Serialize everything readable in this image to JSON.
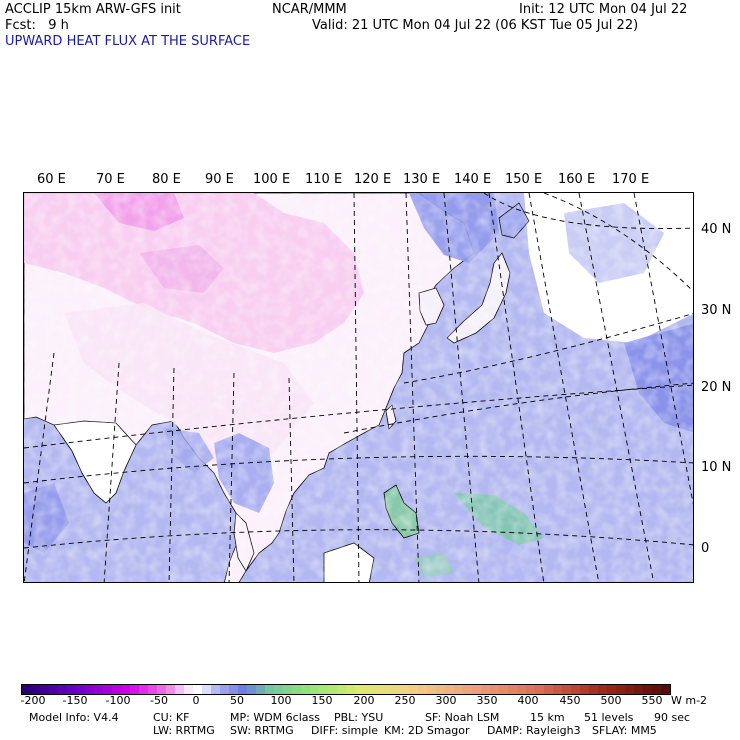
{
  "header": {
    "model": "ACCLIP 15km ARW-GFS init",
    "org": "NCAR/MMM",
    "init": "Init: 12 UTC Mon 04 Jul 22",
    "fcst": "Fcst:   9 h",
    "valid": "Valid: 21 UTC Mon 04 Jul 22 (06 KST Tue 05 Jul 22)",
    "field": "UPWARD HEAT FLUX AT THE SURFACE"
  },
  "map": {
    "lon_labels": [
      "60 E",
      "70 E",
      "80 E",
      "90 E",
      "100 E",
      "110 E",
      "120 E",
      "130 E",
      "140 E",
      "150 E",
      "160 E",
      "170 E"
    ],
    "lat_labels": [
      "40 N",
      "30 N",
      "20 N",
      "10 N",
      "0"
    ]
  },
  "colorbar": {
    "ticks": [
      "-200",
      "-150",
      "-100",
      "-50",
      "0",
      "50",
      "100",
      "150",
      "200",
      "250",
      "300",
      "350",
      "400",
      "450",
      "500",
      "550"
    ],
    "units": "W m-2",
    "colors": {
      "ocean_negative": "#b3b8f0",
      "ocean_deep": "#8088e8",
      "land_positive_low": "#f7e6f7",
      "land_positive": "#f7c8ef",
      "pink_strong": "#ef90e8",
      "green_low": "#77c9a3"
    }
  },
  "footer": {
    "line1": [
      "Model Info: V4.4",
      "CU: KF",
      "MP: WDM 6class",
      "PBL: YSU",
      "SF: Noah LSM",
      "15 km",
      "51 levels",
      "90 sec"
    ],
    "line2": [
      "LW: RRTMG",
      "SW: RRTMG",
      "DIFF: simple",
      "KM: 2D Smagor",
      "DAMP: Rayleigh3",
      "SFLAY: MM5"
    ]
  }
}
